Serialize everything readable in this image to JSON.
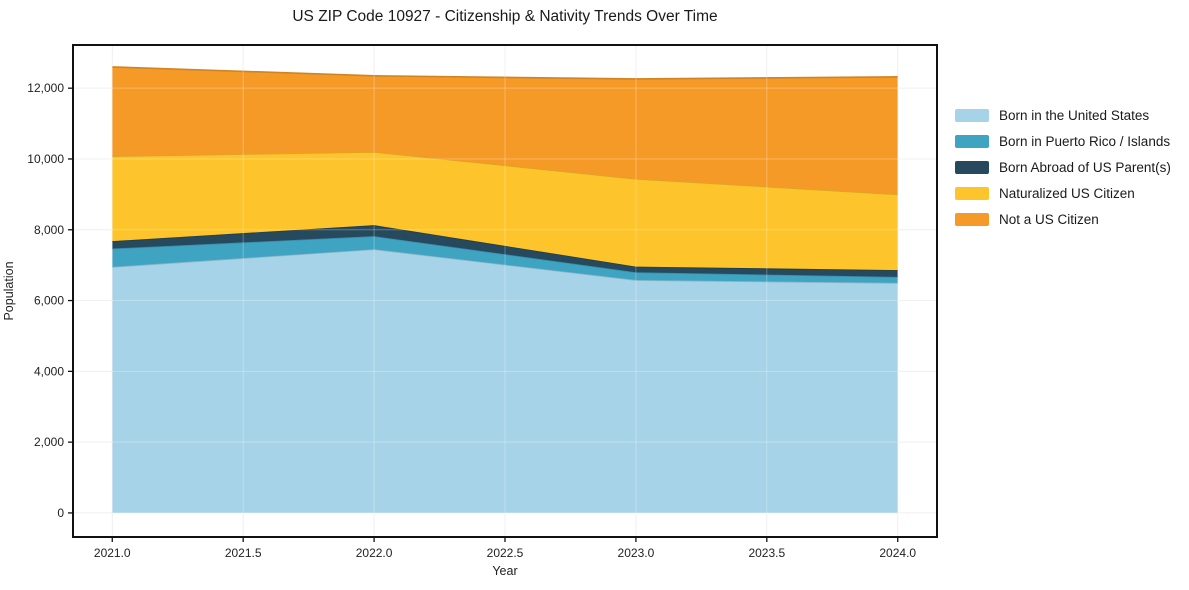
{
  "window": {
    "title": "US ZIP Code 10927 - Citizenship & Nativity Trends Over Time"
  },
  "chart_data": {
    "type": "area",
    "stacked": true,
    "title": "US ZIP Code 10927 - Citizenship & Nativity Trends Over Time",
    "xlabel": "Year",
    "ylabel": "Population",
    "x": [
      2021,
      2022,
      2023,
      2024
    ],
    "series": [
      {
        "label": "Born in the United States",
        "color": "#A6D3E8",
        "values": [
          6950,
          7450,
          6580,
          6500
        ]
      },
      {
        "label": "Born in Puerto Rico / Islands",
        "color": "#3FA3C2",
        "values": [
          520,
          370,
          220,
          170
        ]
      },
      {
        "label": "Born Abroad of US Parent(s)",
        "color": "#26495D",
        "values": [
          210,
          310,
          160,
          190
        ]
      },
      {
        "label": "Naturalized US Citizen",
        "color": "#FDC42C",
        "values": [
          2400,
          2070,
          2480,
          2140
        ]
      },
      {
        "label": "Not a US Citizen",
        "color": "#F69A27",
        "values": [
          2520,
          2150,
          2820,
          3320
        ]
      }
    ],
    "stacked_totals": [
      12600,
      12350,
      12260,
      12320
    ],
    "xlim": [
      2020.85,
      2024.15
    ],
    "ylim": [
      -680,
      13220
    ],
    "x_ticks": [
      {
        "v": 2021.0,
        "label": "2021.0"
      },
      {
        "v": 2021.5,
        "label": "2021.5"
      },
      {
        "v": 2022.0,
        "label": "2022.0"
      },
      {
        "v": 2022.5,
        "label": "2022.5"
      },
      {
        "v": 2023.0,
        "label": "2023.0"
      },
      {
        "v": 2023.5,
        "label": "2023.5"
      },
      {
        "v": 2024.0,
        "label": "2024.0"
      }
    ],
    "y_ticks": [
      {
        "v": 0,
        "label": "0"
      },
      {
        "v": 2000,
        "label": "2,000"
      },
      {
        "v": 4000,
        "label": "4,000"
      },
      {
        "v": 6000,
        "label": "6,000"
      },
      {
        "v": 8000,
        "label": "8,000"
      },
      {
        "v": 10000,
        "label": "10,000"
      },
      {
        "v": 12000,
        "label": "12,000"
      }
    ],
    "grid": true,
    "grid_color": "#ebebeb",
    "legend_position": "right-outside",
    "axis_border_color": "#111111",
    "tick_label_color": "#222222"
  }
}
